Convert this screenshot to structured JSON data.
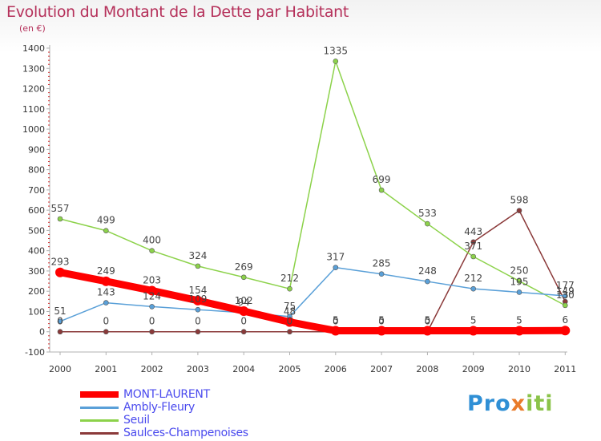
{
  "title": "Evolution du Montant de la Dette par Habitant",
  "subtitle": "(en €)",
  "logo": {
    "text": "Proxiti",
    "part1": "Pro",
    "part2": "x",
    "part3": "iti"
  },
  "chart_data": {
    "type": "line",
    "title": "Evolution du Montant de la Dette par Habitant",
    "ylabel": "(en €)",
    "ylim": [
      -100,
      1400
    ],
    "yticks": [
      -100,
      0,
      100,
      200,
      300,
      400,
      500,
      600,
      700,
      800,
      900,
      1000,
      1100,
      1200,
      1300,
      1400
    ],
    "categories": [
      "2000",
      "2001",
      "2002",
      "2003",
      "2004",
      "2005",
      "2006",
      "2007",
      "2008",
      "2009",
      "2010",
      "2011"
    ],
    "grid": false,
    "legend_position": "bottom-left",
    "series": [
      {
        "name": "MONT-LAURENT",
        "color": "#ff0000",
        "values": [
          293,
          249,
          203,
          154,
          102,
          48,
          5,
          5,
          5,
          5,
          5,
          6
        ],
        "labels": [
          "293",
          "249",
          "203",
          "154",
          "102",
          "48",
          "5",
          "5",
          "5",
          "5",
          "5",
          "6"
        ],
        "thick": true
      },
      {
        "name": "Ambly-Fleury",
        "color": "#5aa0d8",
        "values": [
          51,
          143,
          124,
          109,
          94,
          75,
          317,
          285,
          248,
          212,
          195,
          177
        ],
        "labels": [
          "51",
          "143",
          "124",
          "109",
          "94",
          "75",
          "317",
          "285",
          "248",
          "212",
          "195",
          "177"
        ]
      },
      {
        "name": "Seuil",
        "color": "#8cd24a",
        "values": [
          557,
          499,
          400,
          324,
          269,
          212,
          1335,
          699,
          533,
          371,
          250,
          130
        ],
        "labels": [
          "557",
          "499",
          "400",
          "324",
          "269",
          "212",
          "1335",
          "699",
          "533",
          "371",
          "250",
          "130"
        ]
      },
      {
        "name": "Saulces-Champenoises",
        "color": "#8b3a3a",
        "values": [
          0,
          0,
          0,
          0,
          0,
          0,
          0,
          0,
          0,
          443,
          598,
          149
        ],
        "labels": [
          "0",
          "0",
          "0",
          "0",
          "0",
          "0",
          "0",
          "0",
          "0",
          "443",
          "598",
          "149"
        ]
      }
    ]
  }
}
